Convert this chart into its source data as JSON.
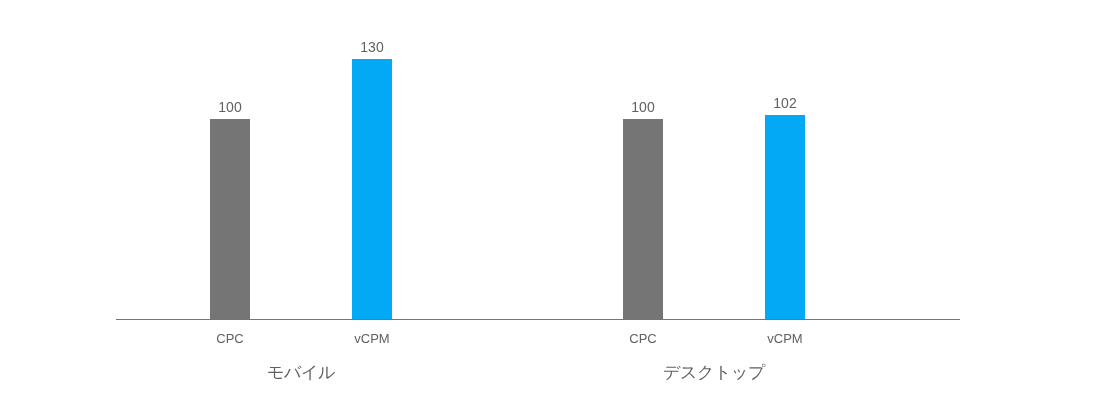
{
  "chart_data": {
    "type": "bar",
    "categories": [
      "CPC",
      "vCPM",
      "CPC",
      "vCPM"
    ],
    "values": [
      100,
      130,
      100,
      102
    ],
    "colors": [
      "#757575",
      "#03a9f4",
      "#757575",
      "#03a9f4"
    ],
    "data_labels": true,
    "annotations": [
      "モバイル",
      "デスクトップ"
    ]
  }
}
